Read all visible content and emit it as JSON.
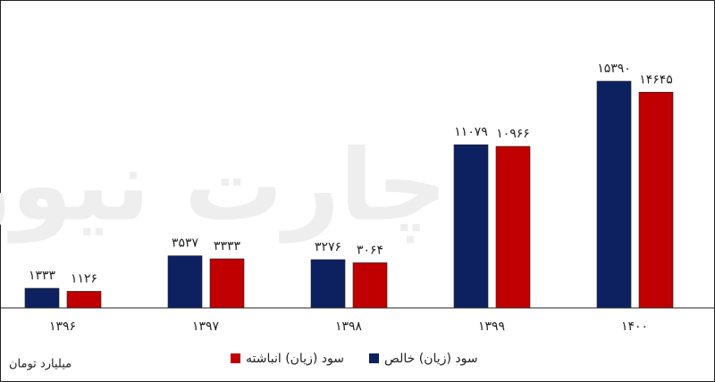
{
  "chart_data": {
    "type": "bar",
    "watermark": "چارت نیوز",
    "unit": "میلیارد تومان",
    "categories": [
      "۱۳۹۶",
      "۱۳۹۷",
      "۱۳۹۸",
      "۱۳۹۹",
      "۱۴۰۰"
    ],
    "series": [
      {
        "name": "سود (زیان) خالص",
        "color": "#0d2160",
        "values": [
          1333,
          3537,
          3276,
          11079,
          15390
        ],
        "value_labels": [
          "۱۳۳۳",
          "۳۵۳۷",
          "۳۲۷۶",
          "۱۱۰۷۹",
          "۱۵۳۹۰"
        ]
      },
      {
        "name": "سود (زیان) انباشته",
        "color": "#c00000",
        "values": [
          1126,
          3333,
          3064,
          10966,
          14645
        ],
        "value_labels": [
          "۱۱۲۶",
          "۳۳۳۳",
          "۳۰۶۴",
          "۱۰۹۶۶",
          "۱۴۶۴۵"
        ]
      }
    ]
  }
}
